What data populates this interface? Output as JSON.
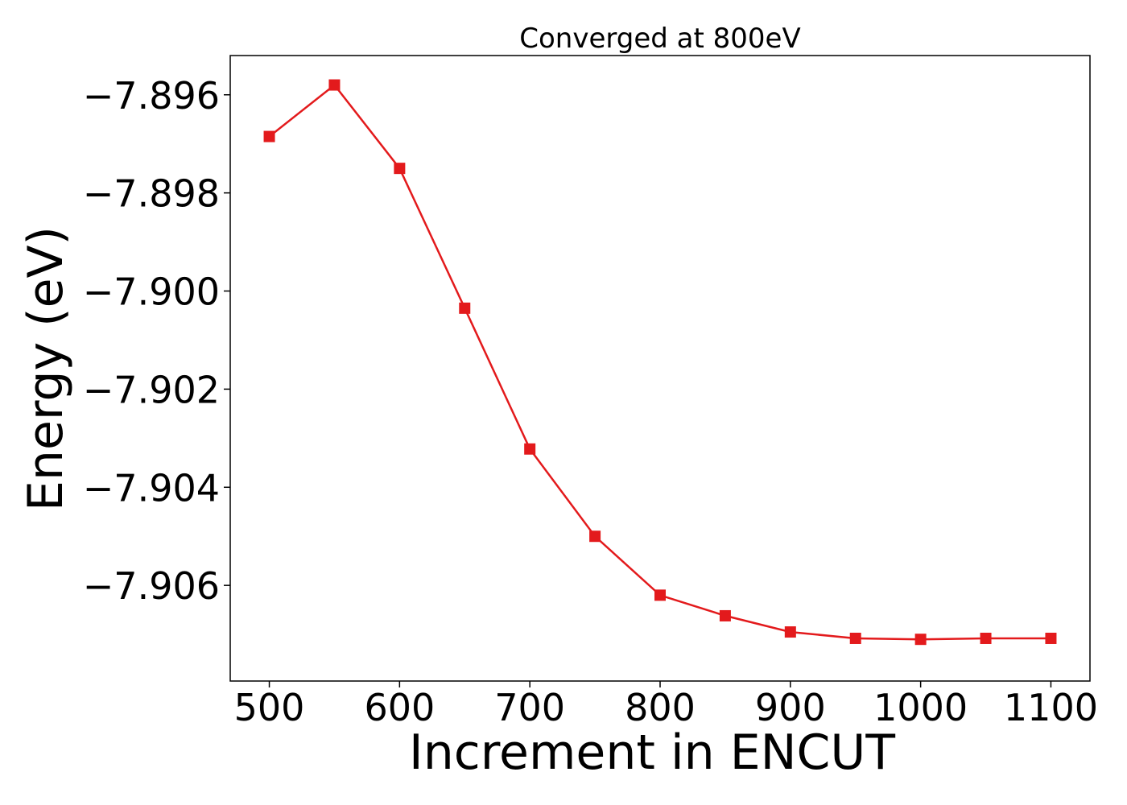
{
  "chart_data": {
    "type": "line",
    "title": "Converged at 800eV",
    "xlabel": "Increment in ENCUT",
    "ylabel": "Energy (eV)",
    "x_ticks": [
      500,
      600,
      700,
      800,
      900,
      1000,
      1100
    ],
    "x_tick_labels": [
      "500",
      "600",
      "700",
      "800",
      "900",
      "1000",
      "1100"
    ],
    "y_ticks": [
      -7.896,
      -7.898,
      -7.9,
      -7.902,
      -7.904,
      -7.906
    ],
    "y_tick_labels": [
      "−7.896",
      "−7.898",
      "−7.900",
      "−7.902",
      "−7.904",
      "−7.906"
    ],
    "xlim": [
      470,
      1130
    ],
    "ylim": [
      -7.90795,
      -7.8952
    ],
    "grid": false,
    "series": [
      {
        "color": "#e31a1c",
        "marker": "square",
        "x": [
          500,
          550,
          600,
          650,
          700,
          750,
          800,
          850,
          900,
          950,
          1000,
          1050,
          1100
        ],
        "y": [
          -7.89685,
          -7.8958,
          -7.8975,
          -7.90035,
          -7.90322,
          -7.905,
          -7.9062,
          -7.90662,
          -7.90695,
          -7.90708,
          -7.9071,
          -7.90708,
          -7.90708
        ]
      }
    ]
  }
}
